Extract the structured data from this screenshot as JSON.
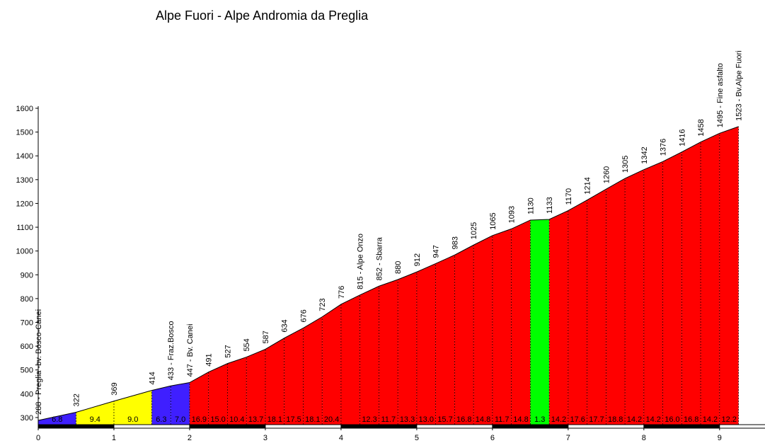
{
  "chart_data": {
    "type": "elevation-profile",
    "title": "Alpe Fuori - Alpe Andromia da Preglia",
    "x": [
      0,
      0.5,
      1,
      1.5,
      1.75,
      2,
      2.25,
      2.5,
      2.75,
      3,
      3.25,
      3.5,
      3.75,
      4,
      4.25,
      4.5,
      4.75,
      5,
      5.25,
      5.5,
      5.75,
      6,
      6.25,
      6.5,
      6.75,
      7,
      7.25,
      7.5,
      7.75,
      8,
      8.25,
      8.5,
      8.75,
      9,
      9.25
    ],
    "values": [
      288,
      322,
      369,
      414,
      433,
      447,
      491,
      527,
      554,
      587,
      634,
      676,
      723,
      776,
      815,
      852,
      880,
      912,
      947,
      983,
      1025,
      1065,
      1093,
      1130,
      1133,
      1170,
      1214,
      1260,
      1305,
      1342,
      1376,
      1416,
      1458,
      1495,
      1523
    ],
    "value_labels": [
      "288 - Preglia -bv. Bosco-Canei",
      null,
      null,
      null,
      "433 - Fraz.Bosco",
      "447 - Bv. Canei",
      null,
      null,
      null,
      null,
      null,
      null,
      null,
      null,
      "815 - Alpe Onzo",
      "852 - Sbarra",
      null,
      null,
      null,
      null,
      null,
      null,
      null,
      null,
      null,
      null,
      null,
      null,
      null,
      null,
      null,
      null,
      null,
      "1495 - Fine asfalto",
      "1523 - Bv.Alpe Fuori"
    ],
    "segment_labels": [
      "6.8",
      "9.4",
      "9.0",
      "6.3",
      "7.0",
      "16.9",
      "15.0",
      "10.4",
      "13.7",
      "18.1",
      "17.5",
      "18.1",
      "20.4",
      null,
      "12.3",
      "11.7",
      "13.3",
      "13.0",
      "15.7",
      "16.8",
      "14.8",
      "11.7",
      "14.8",
      "1.3",
      "14.2",
      "17.6",
      "17.7",
      "18.8",
      "14.2",
      "14.2",
      "16.0",
      "16.8",
      "14.2",
      "12.2"
    ],
    "segment_colors": [
      "#3f1fff",
      "#ffff00",
      "#ffff00",
      "#3f1fff",
      "#3f1fff",
      "#ff0000",
      "#ff0000",
      "#ff0000",
      "#ff0000",
      "#ff0000",
      "#ff0000",
      "#ff0000",
      "#ff0000",
      "#ff0000",
      "#ff0000",
      "#ff0000",
      "#ff0000",
      "#ff0000",
      "#ff0000",
      "#ff0000",
      "#ff0000",
      "#ff0000",
      "#ff0000",
      "#00ff00",
      "#ff0000",
      "#ff0000",
      "#ff0000",
      "#ff0000",
      "#ff0000",
      "#ff0000",
      "#ff0000",
      "#ff0000",
      "#ff0000",
      "#ff0000"
    ],
    "xlim": [
      0,
      9.6
    ],
    "xticks": [
      0,
      1,
      2,
      3,
      4,
      5,
      6,
      7,
      8,
      9
    ],
    "ylim": [
      270,
      1600
    ],
    "yticks": [
      300,
      400,
      500,
      600,
      700,
      800,
      900,
      1000,
      1100,
      1200,
      1300,
      1400,
      1500,
      1600
    ]
  }
}
